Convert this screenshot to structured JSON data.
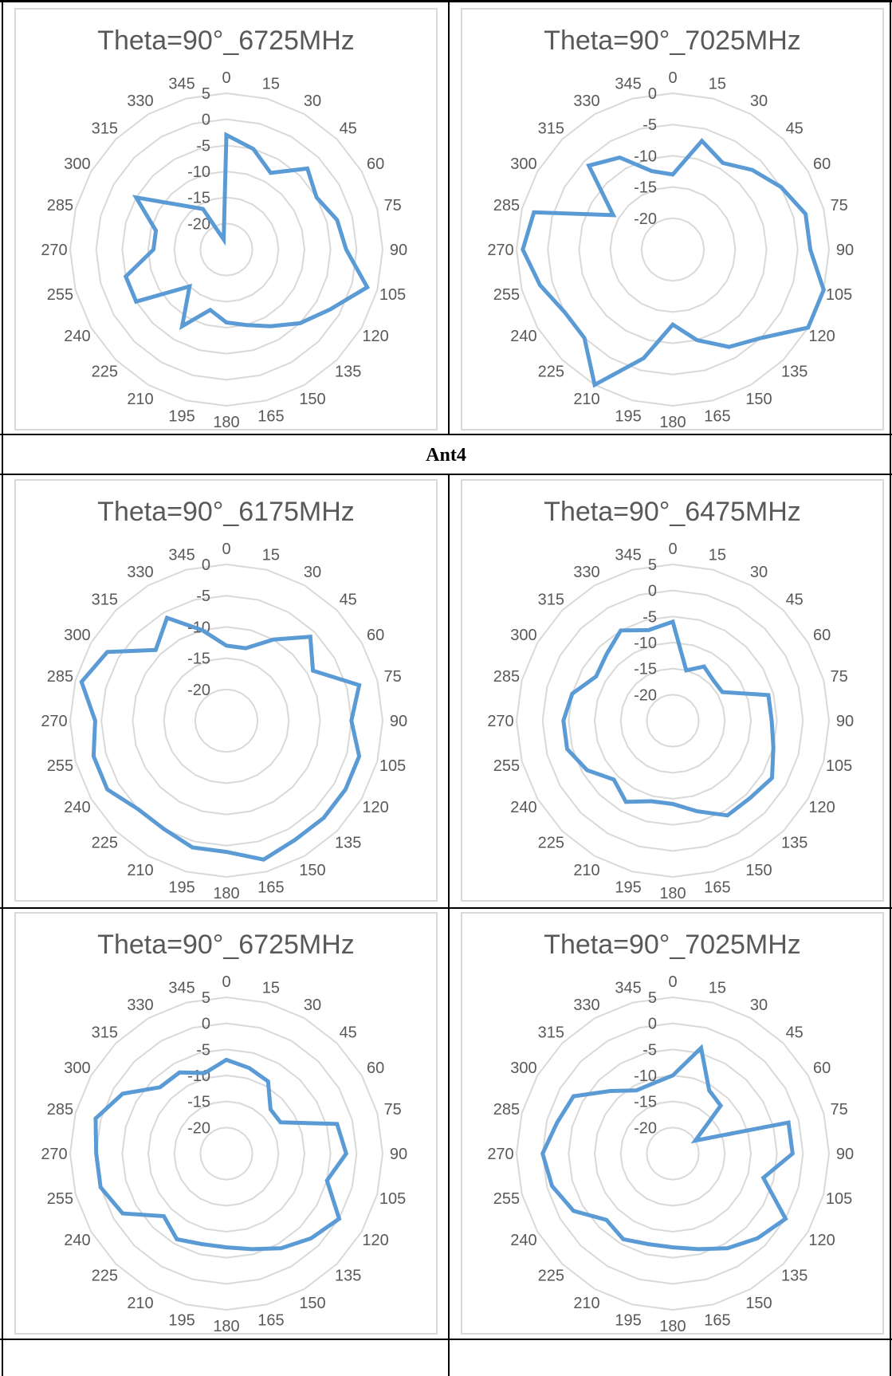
{
  "section_label": "Ant4",
  "charts": [
    {
      "id": "c1",
      "title": "Theta=90°_6725MHz"
    },
    {
      "id": "c2",
      "title": "Theta=90°_7025MHz"
    },
    {
      "id": "c3",
      "title": "Theta=90°_6175MHz"
    },
    {
      "id": "c4",
      "title": "Theta=90°_6475MHz"
    },
    {
      "id": "c5",
      "title": "Theta=90°_6725MHz"
    },
    {
      "id": "c6",
      "title": "Theta=90°_7025MHz"
    }
  ],
  "chart_data": [
    {
      "type": "radar",
      "title": "Theta=90°_6725MHz",
      "angles": [
        0,
        15,
        30,
        45,
        60,
        75,
        90,
        105,
        120,
        135,
        150,
        165,
        180,
        195,
        210,
        225,
        240,
        255,
        270,
        285,
        300,
        315,
        330,
        345
      ],
      "radial_ticks": [
        5,
        0,
        -5,
        -10,
        -15,
        -20
      ],
      "rlim": [
        -25,
        5
      ],
      "series_color": "#5b9bd5",
      "values": [
        -3,
        -5,
        -8,
        -3,
        -5,
        -3,
        -2,
        3,
        -2,
        -5,
        -8,
        -10,
        -11,
        -13,
        -8,
        -15,
        -5,
        -5,
        -11,
        -11,
        -5,
        -13,
        -16,
        -23
      ]
    },
    {
      "type": "radar",
      "title": "Theta=90°_7025MHz",
      "angles": [
        0,
        15,
        30,
        45,
        60,
        75,
        90,
        105,
        120,
        135,
        150,
        165,
        180,
        195,
        210,
        225,
        240,
        255,
        270,
        285,
        300,
        315,
        330,
        345
      ],
      "radial_ticks": [
        0,
        -5,
        -10,
        -15,
        -20
      ],
      "rlim": [
        -25,
        0
      ],
      "series_color": "#5b9bd5",
      "values": [
        -13,
        -7,
        -9,
        -7,
        -5,
        -3,
        -3,
        0,
        1,
        -5,
        -7,
        -10,
        -13,
        -7,
        0,
        -5,
        -5,
        -3,
        -1,
        -2,
        -14,
        -6,
        -8,
        -12
      ]
    },
    {
      "type": "radar",
      "title": "Theta=90°_6175MHz",
      "angles": [
        0,
        15,
        30,
        45,
        60,
        75,
        90,
        105,
        120,
        135,
        150,
        165,
        180,
        195,
        210,
        225,
        240,
        255,
        270,
        285,
        300,
        315,
        330,
        345
      ],
      "radial_ticks": [
        0,
        -5,
        -10,
        -15,
        -20
      ],
      "rlim": [
        -25,
        0
      ],
      "series_color": "#5b9bd5",
      "values": [
        -13,
        -13,
        -10,
        -6,
        -9,
        -3,
        -5,
        -3,
        -3,
        -3,
        -3,
        -2,
        -4,
        -4,
        -5,
        -5,
        -3,
        -3,
        -4,
        -1,
        -3,
        -9,
        -6,
        -10
      ]
    },
    {
      "type": "radar",
      "title": "Theta=90°_6475MHz",
      "angles": [
        0,
        15,
        30,
        45,
        60,
        75,
        90,
        105,
        120,
        135,
        150,
        165,
        180,
        195,
        210,
        225,
        240,
        255,
        270,
        285,
        300,
        315,
        330,
        345
      ],
      "radial_ticks": [
        5,
        0,
        -5,
        -10,
        -15,
        -20
      ],
      "rlim": [
        -25,
        5
      ],
      "series_color": "#5b9bd5",
      "values": [
        -6,
        -15,
        -13,
        -14,
        -14,
        -6,
        -6,
        -5,
        -3,
        -4,
        -4,
        -7,
        -9,
        -9,
        -7,
        -9,
        -6,
        -4,
        -4,
        -5,
        -8,
        -7,
        -5,
        -7
      ]
    },
    {
      "type": "radar",
      "title": "Theta=90°_6725MHz",
      "angles": [
        0,
        15,
        30,
        45,
        60,
        75,
        90,
        105,
        120,
        135,
        150,
        165,
        180,
        195,
        210,
        225,
        240,
        255,
        270,
        285,
        300,
        315,
        330,
        345
      ],
      "radial_ticks": [
        5,
        0,
        -5,
        -10,
        -15,
        -20
      ],
      "rlim": [
        -25,
        5
      ],
      "series_color": "#5b9bd5",
      "values": [
        -7,
        -8,
        -9,
        -13,
        -13,
        -3,
        -2,
        -5,
        0,
        -2,
        -4,
        -6,
        -7,
        -7,
        -6,
        -8,
        -2,
        0,
        0,
        1,
        -2,
        -7,
        -7,
        -9
      ]
    },
    {
      "type": "radar",
      "title": "Theta=90°_7025MHz",
      "angles": [
        0,
        15,
        30,
        45,
        60,
        75,
        90,
        105,
        120,
        135,
        150,
        165,
        180,
        195,
        210,
        225,
        240,
        255,
        270,
        285,
        300,
        315,
        330,
        345
      ],
      "radial_ticks": [
        5,
        0,
        -5,
        -10,
        -15,
        -20
      ],
      "rlim": [
        -25,
        5
      ],
      "series_color": "#5b9bd5",
      "values": [
        -10,
        -4,
        -11,
        -12,
        -20,
        -2,
        -2,
        -7,
        0,
        -2,
        -4,
        -6,
        -7,
        -7,
        -6,
        -7,
        -3,
        -1,
        0,
        -2,
        -3,
        -8,
        -11,
        -11
      ]
    }
  ]
}
